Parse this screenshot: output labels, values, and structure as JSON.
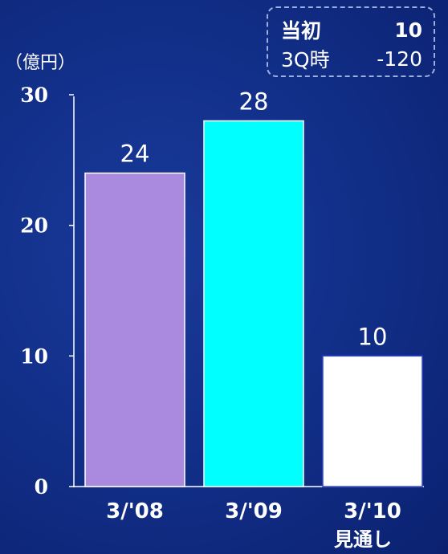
{
  "legend_box": {
    "rows": [
      {
        "label": "当初",
        "value": "10"
      },
      {
        "label": "3Q時",
        "value": "-120"
      }
    ]
  },
  "unit_label": "（億円）",
  "subnote": "見通し",
  "chart_data": {
    "type": "bar",
    "categories": [
      "3/'08",
      "3/'09",
      "3/'10"
    ],
    "values": [
      24,
      28,
      10
    ],
    "data_labels": [
      "24",
      "28",
      "10"
    ],
    "bar_colors": [
      "#a98ade",
      "#00ffff",
      "#ffffff"
    ],
    "ylim": [
      0,
      30
    ],
    "yticks": [
      0,
      10,
      20,
      30
    ],
    "ytick_labels": [
      "0",
      "10",
      "20",
      "30"
    ],
    "title": "",
    "xlabel": "",
    "ylabel": "",
    "grid": false
  }
}
